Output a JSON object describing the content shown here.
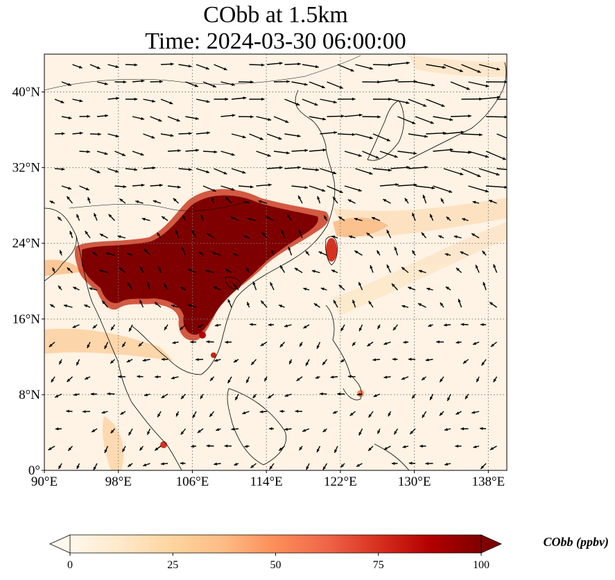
{
  "title": {
    "line1": "CObb at 1.5km",
    "line2": "Time: 2024-03-30 06:00:00"
  },
  "map": {
    "lon_range": [
      90,
      140
    ],
    "lat_range": [
      0,
      44
    ],
    "lon_ticks": [
      {
        "value": 90,
        "label": "90°E"
      },
      {
        "value": 98,
        "label": "98°E"
      },
      {
        "value": 106,
        "label": "106°E"
      },
      {
        "value": 114,
        "label": "114°E"
      },
      {
        "value": 122,
        "label": "122°E"
      },
      {
        "value": 130,
        "label": "130°E"
      },
      {
        "value": 138,
        "label": "138°E"
      }
    ],
    "lat_ticks": [
      {
        "value": 0,
        "label": "0°"
      },
      {
        "value": 8,
        "label": "8°N"
      },
      {
        "value": 16,
        "label": "16°N"
      },
      {
        "value": 24,
        "label": "24°N"
      },
      {
        "value": 32,
        "label": "32°N"
      },
      {
        "value": 40,
        "label": "40°N"
      }
    ],
    "gridlines": true,
    "gridline_style": "dotted",
    "background_color": "#fef3e4",
    "plume_colors": [
      "#fde3c4",
      "#fdc48a",
      "#f08a4b",
      "#c4250c",
      "#7f0000"
    ],
    "wind_vectors": "black arrows"
  },
  "colorbar": {
    "label": "CObb (ppbv)",
    "min": 0,
    "max": 100,
    "extend": "both",
    "ticks": [
      {
        "value": 0,
        "label": "0"
      },
      {
        "value": 25,
        "label": "25"
      },
      {
        "value": 50,
        "label": "50"
      },
      {
        "value": 75,
        "label": "75"
      },
      {
        "value": 100,
        "label": "100"
      }
    ],
    "colormap": "OrRd",
    "stops": [
      "#fff7ec",
      "#fee8c8",
      "#fdd49e",
      "#fdbb84",
      "#fc8d59",
      "#ef6548",
      "#d7301f",
      "#b30000",
      "#7f0000"
    ]
  }
}
